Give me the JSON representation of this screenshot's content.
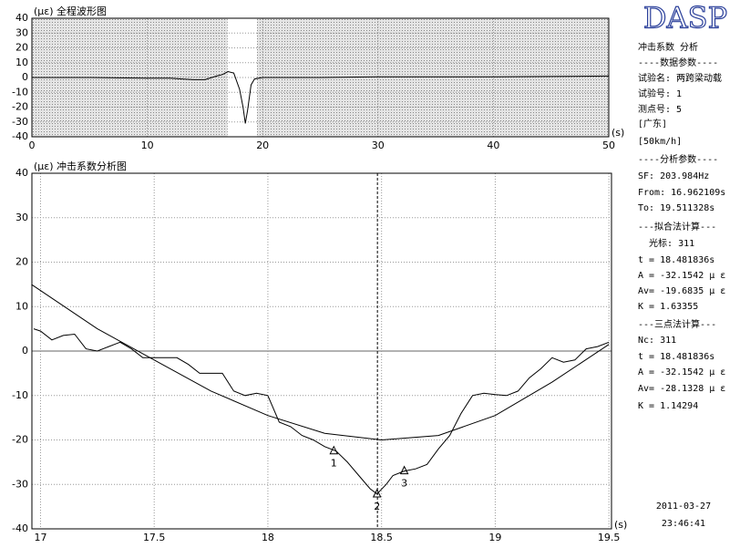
{
  "chart_data": [
    {
      "type": "line",
      "title": "(με) 全程波形图",
      "x_unit": "(s)",
      "xlim": [
        0,
        50
      ],
      "xticks": [
        0,
        10,
        20,
        30,
        40,
        50
      ],
      "ylim": [
        -40,
        40
      ],
      "yticks": [
        40,
        30,
        20,
        10,
        0,
        -10,
        -20,
        -30,
        -40
      ],
      "grid": true,
      "highlight": [
        16.962109,
        19.511328
      ],
      "series": [
        {
          "color": "#000000",
          "x": [
            0,
            5,
            10,
            12,
            13,
            14,
            15,
            16,
            16.5,
            17,
            17.5,
            18,
            18.3,
            18.5,
            18.7,
            19,
            19.3,
            20,
            25,
            30,
            40,
            50
          ],
          "values": [
            0,
            0,
            -0.5,
            -0.5,
            -1,
            -1.5,
            -1.5,
            1,
            2,
            4,
            3,
            -8,
            -20,
            -31,
            -22,
            -5,
            -1,
            0,
            0,
            0.5,
            0.5,
            1
          ]
        }
      ]
    },
    {
      "type": "line",
      "title": "(με) 冲击系数分析图",
      "x_unit": "(s)",
      "xlim": [
        16.962109,
        19.511328
      ],
      "xticks": [
        17,
        17.5,
        18,
        18.5,
        19,
        19.5
      ],
      "ylim": [
        -40,
        40
      ],
      "yticks": [
        40,
        30,
        20,
        10,
        0,
        -10,
        -20,
        -30,
        -40
      ],
      "grid": true,
      "zero_line": true,
      "cursor": 18.481836,
      "series": [
        {
          "color": "#000000",
          "x": [
            16.97,
            17.0,
            17.05,
            17.1,
            17.15,
            17.2,
            17.25,
            17.3,
            17.35,
            17.4,
            17.45,
            17.5,
            17.55,
            17.6,
            17.65,
            17.7,
            17.75,
            17.8,
            17.85,
            17.9,
            17.95,
            18.0,
            18.05,
            18.1,
            18.15,
            18.2,
            18.25,
            18.3,
            18.35,
            18.4,
            18.45,
            18.48,
            18.52,
            18.55,
            18.6,
            18.65,
            18.7,
            18.75,
            18.8,
            18.85,
            18.9,
            18.95,
            19.0,
            19.05,
            19.1,
            19.15,
            19.2,
            19.25,
            19.3,
            19.35,
            19.4,
            19.45,
            19.5
          ],
          "values": [
            5,
            4.5,
            2.5,
            3.5,
            3.8,
            0.5,
            0,
            1,
            2,
            0.5,
            -1.5,
            -1.5,
            -1.5,
            -1.5,
            -3,
            -5,
            -5,
            -5,
            -9,
            -10,
            -9.5,
            -10,
            -16,
            -17,
            -19,
            -20,
            -21.5,
            -22.5,
            -25,
            -28,
            -31,
            -32.15,
            -30,
            -28,
            -27,
            -26.5,
            -25.5,
            -22,
            -19,
            -14,
            -10,
            -9.5,
            -9.8,
            -10,
            -9,
            -6,
            -4,
            -1.5,
            -2.5,
            -2,
            0.5,
            1,
            2
          ]
        },
        {
          "color": "#000000",
          "x": [
            16.96,
            17.25,
            17.5,
            17.75,
            18.0,
            18.25,
            18.5,
            18.75,
            19.0,
            19.25,
            19.5
          ],
          "values": [
            15,
            5,
            -2,
            -9,
            -14.5,
            -18.5,
            -20,
            -19,
            -14.5,
            -7,
            1.5
          ]
        }
      ],
      "markers": [
        {
          "label": "1",
          "x": 18.29,
          "y": -22.5
        },
        {
          "label": "2",
          "x": 18.48,
          "y": -32.2
        },
        {
          "label": "3",
          "x": 18.6,
          "y": -27
        }
      ]
    }
  ],
  "panel": {
    "logo": "DASP",
    "lines": [
      "冲击系数 分析",
      "----数据参数----",
      "试验名: 两跨梁动载",
      "试验号: 1",
      "测点号: 5",
      "[广东]",
      "[50km/h]",
      "----分析参数----",
      "SF: 203.984Hz",
      "From: 16.962109s",
      "To: 19.511328s",
      "---拟合法计算---",
      "  光标: 311",
      "t = 18.481836s",
      "A = -32.1542 μ ε",
      "Av= -19.6835 μ ε",
      "K = 1.63355",
      "---三点法计算---",
      "Nc: 311",
      "t = 18.481836s",
      "A = -32.1542 μ ε",
      "Av= -28.1328 μ ε",
      "K = 1.14294"
    ],
    "date": "2011-03-27",
    "time": "23:46:41"
  }
}
